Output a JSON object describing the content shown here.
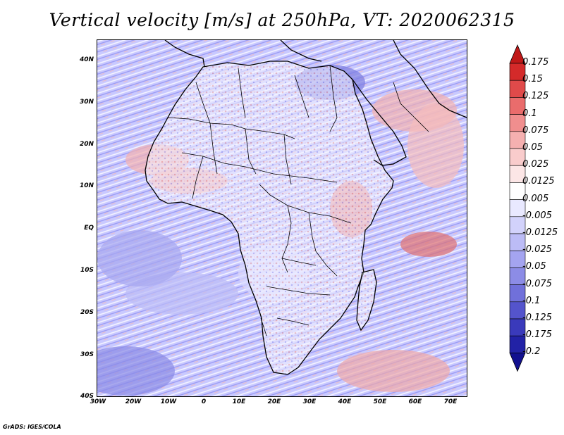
{
  "title": "Vertical velocity [m/s] at 250hPa, VT: 2020062315",
  "credit": "GrADS: IGES/COLA",
  "map": {
    "lat_labels": [
      "40N",
      "30N",
      "20N",
      "10N",
      "EQ",
      "10S",
      "20S",
      "30S",
      "40S"
    ],
    "lon_labels": [
      "30W",
      "20W",
      "10W",
      "0",
      "10E",
      "20E",
      "30E",
      "40E",
      "50E",
      "60E",
      "70E"
    ],
    "lat_range": [
      -40,
      44
    ],
    "lon_range": [
      -30,
      75
    ],
    "background_tone": "#c8c8ff"
  },
  "colorbar": {
    "labels": [
      "0.175",
      "0.15",
      "0.125",
      "0.1",
      "0.075",
      "0.05",
      "0.025",
      "0.0125",
      "0.005",
      "-0.005",
      "-0.0125",
      "-0.025",
      "-0.05",
      "-0.075",
      "-0.1",
      "-0.125",
      "-0.175",
      "-0.2"
    ],
    "colors": [
      "#c01818",
      "#d42a2a",
      "#e04a4a",
      "#ea6c6c",
      "#f08e8e",
      "#f5b0b0",
      "#f9cccc",
      "#fce6e6",
      "#ffffff",
      "#e9e9ff",
      "#d2d2fb",
      "#bcbcf6",
      "#a4a4f0",
      "#8c8ce6",
      "#7070da",
      "#5454cc",
      "#3a3abb",
      "#2222a6",
      "#12108f"
    ]
  }
}
